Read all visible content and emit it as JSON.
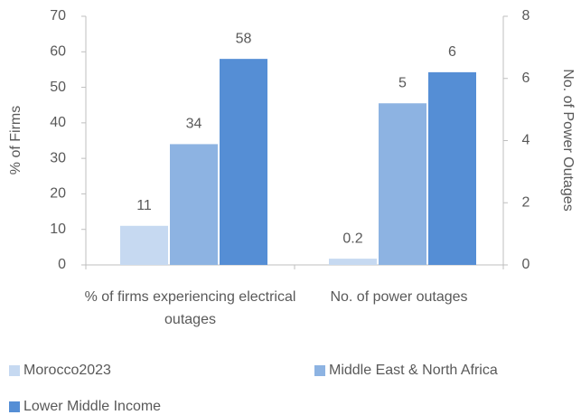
{
  "chart_data": {
    "type": "bar",
    "categories": [
      "% of firms experiencing electrical outages",
      "No. of power outages"
    ],
    "category_axes": [
      "y",
      "y2"
    ],
    "ylabel": "% of Firms",
    "y2label": "No. of Power Outages",
    "ylim": [
      0,
      70
    ],
    "yticks": [
      0,
      10,
      20,
      30,
      40,
      50,
      60,
      70
    ],
    "y2lim": [
      0,
      8
    ],
    "y2ticks": [
      0,
      2,
      4,
      6,
      8
    ],
    "legend": "bottom",
    "series": [
      {
        "name": "Morocco2023",
        "color": "#c6d9f1",
        "values": [
          11,
          0.2
        ],
        "value_labels": [
          "11",
          "0.2"
        ]
      },
      {
        "name": "Middle East & North Africa",
        "color": "#8db3e2",
        "values": [
          34,
          5.2
        ],
        "value_labels": [
          "34",
          "5"
        ]
      },
      {
        "name": "Lower Middle Income",
        "color": "#558ed5",
        "values": [
          58,
          6.2
        ],
        "value_labels": [
          "58",
          "6"
        ]
      }
    ]
  }
}
